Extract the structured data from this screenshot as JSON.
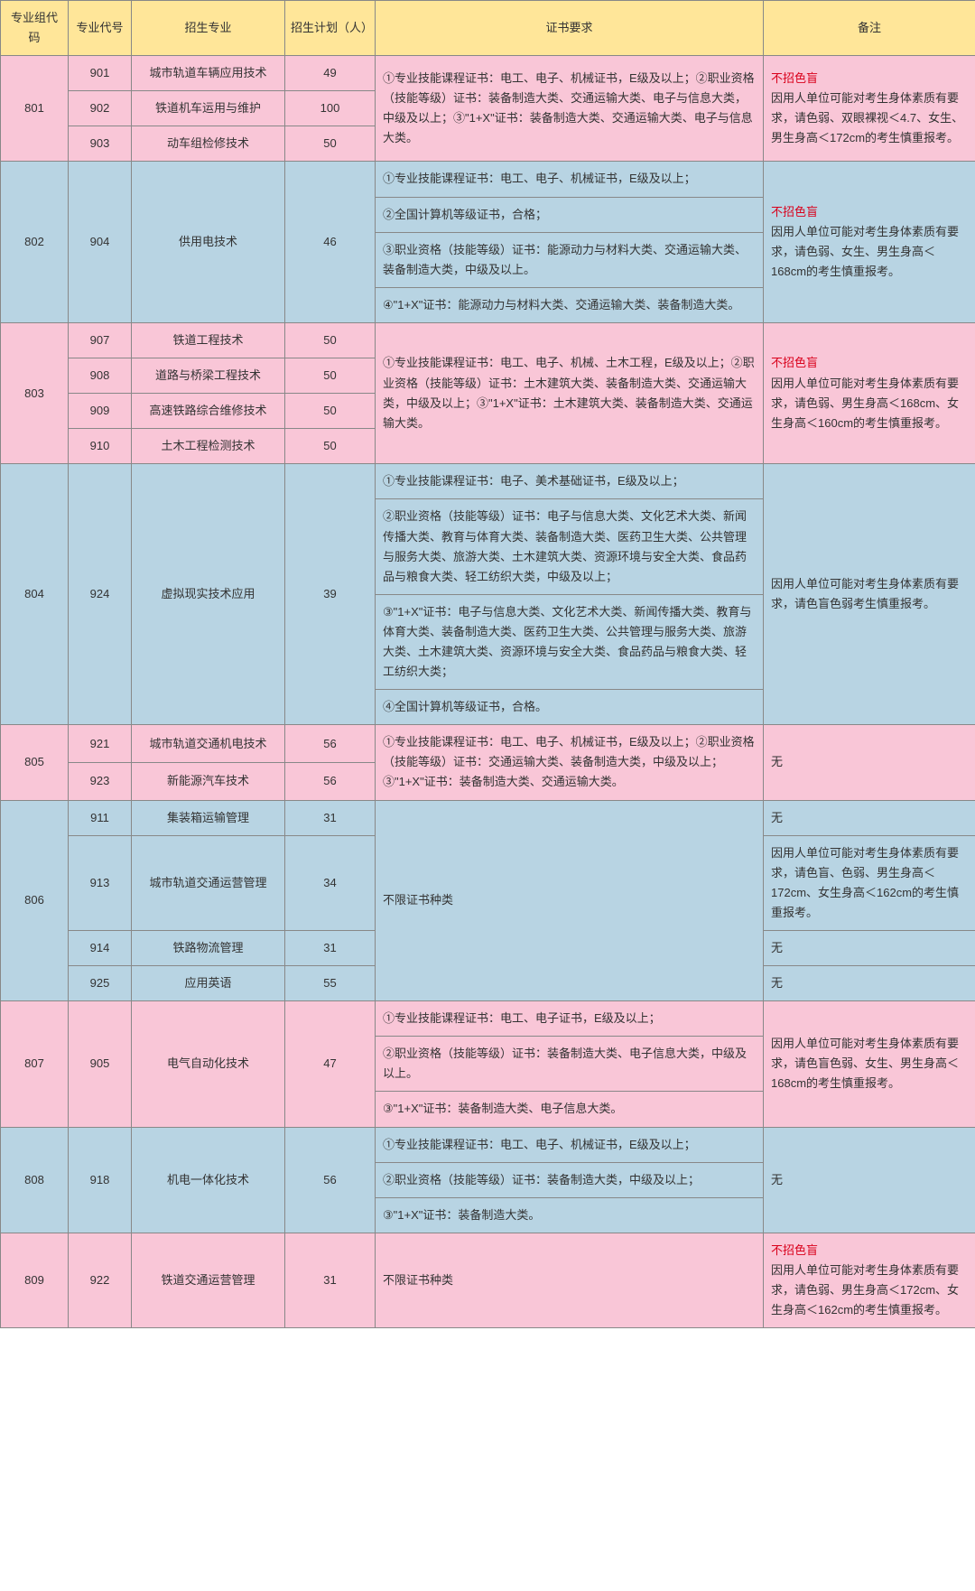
{
  "colors": {
    "header_bg": "#ffe699",
    "pink_bg": "#f9c6d7",
    "blue_bg": "#b8d4e3",
    "border": "#888888",
    "warn_text": "#d9001b"
  },
  "headers": {
    "group_code": "专业组代码",
    "major_code": "专业代号",
    "major": "招生专业",
    "plan": "招生计划（人）",
    "cert": "证书要求",
    "note": "备注"
  },
  "groups": [
    {
      "code": "801",
      "bg": "pink",
      "majors": [
        {
          "code": "901",
          "name": "城市轨道车辆应用技术",
          "plan": "49"
        },
        {
          "code": "902",
          "name": "铁道机车运用与维护",
          "plan": "100"
        },
        {
          "code": "903",
          "name": "动车组检修技术",
          "plan": "50"
        }
      ],
      "cert_blocks": [
        "①专业技能课程证书：电工、电子、机械证书，E级及以上；②职业资格（技能等级）证书：装备制造大类、交通运输大类、电子与信息大类，中级及以上；③\"1+X\"证书：装备制造大类、交通运输大类、电子与信息大类。"
      ],
      "note_warn": "不招色盲",
      "note_text": "因用人单位可能对考生身体素质有要求，请色弱、双眼裸视＜4.7、女生、男生身高＜172cm的考生慎重报考。"
    },
    {
      "code": "802",
      "bg": "blue",
      "majors": [
        {
          "code": "904",
          "name": "供用电技术",
          "plan": "46"
        }
      ],
      "cert_blocks": [
        "①专业技能课程证书：电工、电子、机械证书，E级及以上；",
        "②全国计算机等级证书，合格；",
        "③职业资格（技能等级）证书：能源动力与材料大类、交通运输大类、装备制造大类，中级及以上。",
        "④\"1+X\"证书：能源动力与材料大类、交通运输大类、装备制造大类。"
      ],
      "note_warn": "不招色盲",
      "note_text": "因用人单位可能对考生身体素质有要求，请色弱、女生、男生身高＜168cm的考生慎重报考。"
    },
    {
      "code": "803",
      "bg": "pink",
      "majors": [
        {
          "code": "907",
          "name": "铁道工程技术",
          "plan": "50"
        },
        {
          "code": "908",
          "name": "道路与桥梁工程技术",
          "plan": "50"
        },
        {
          "code": "909",
          "name": "高速铁路综合维修技术",
          "plan": "50"
        },
        {
          "code": "910",
          "name": "土木工程检测技术",
          "plan": "50"
        }
      ],
      "cert_blocks": [
        "①专业技能课程证书：电工、电子、机械、土木工程，E级及以上；②职业资格（技能等级）证书：土木建筑大类、装备制造大类、交通运输大类，中级及以上；③\"1+X\"证书：土木建筑大类、装备制造大类、交通运输大类。"
      ],
      "note_warn": "不招色盲",
      "note_text": "因用人单位可能对考生身体素质有要求，请色弱、男生身高＜168cm、女生身高＜160cm的考生慎重报考。"
    },
    {
      "code": "804",
      "bg": "blue",
      "majors": [
        {
          "code": "924",
          "name": "虚拟现实技术应用",
          "plan": "39"
        }
      ],
      "cert_blocks": [
        "①专业技能课程证书：电子、美术基础证书，E级及以上；",
        "②职业资格（技能等级）证书：电子与信息大类、文化艺术大类、新闻传播大类、教育与体育大类、装备制造大类、医药卫生大类、公共管理与服务大类、旅游大类、土木建筑大类、资源环境与安全大类、食品药品与粮食大类、轻工纺织大类，中级及以上；",
        "③\"1+X\"证书：电子与信息大类、文化艺术大类、新闻传播大类、教育与体育大类、装备制造大类、医药卫生大类、公共管理与服务大类、旅游大类、土木建筑大类、资源环境与安全大类、食品药品与粮食大类、轻工纺织大类；",
        "④全国计算机等级证书，合格。"
      ],
      "note_warn": "",
      "note_text": "因用人单位可能对考生身体素质有要求，请色盲色弱考生慎重报考。"
    },
    {
      "code": "805",
      "bg": "pink",
      "majors": [
        {
          "code": "921",
          "name": "城市轨道交通机电技术",
          "plan": "56"
        },
        {
          "code": "923",
          "name": "新能源汽车技术",
          "plan": "56"
        }
      ],
      "cert_blocks": [
        "①专业技能课程证书：电工、电子、机械证书，E级及以上；②职业资格（技能等级）证书：交通运输大类、装备制造大类，中级及以上；③\"1+X\"证书：装备制造大类、交通运输大类。"
      ],
      "note_warn": "",
      "note_text": "无"
    },
    {
      "code": "806",
      "bg": "blue",
      "majors": [
        {
          "code": "911",
          "name": "集装箱运输管理",
          "plan": "31",
          "own_note": "无"
        },
        {
          "code": "913",
          "name": "城市轨道交通运营管理",
          "plan": "34",
          "own_note": "因用人单位可能对考生身体素质有要求，请色盲、色弱、男生身高＜172cm、女生身高＜162cm的考生慎重报考。"
        },
        {
          "code": "914",
          "name": "铁路物流管理",
          "plan": "31",
          "own_note": "无"
        },
        {
          "code": "925",
          "name": "应用英语",
          "plan": "55",
          "own_note": "无"
        }
      ],
      "cert_blocks": [
        "不限证书种类"
      ],
      "per_major_note": true
    },
    {
      "code": "807",
      "bg": "pink",
      "majors": [
        {
          "code": "905",
          "name": "电气自动化技术",
          "plan": "47"
        }
      ],
      "cert_blocks": [
        "①专业技能课程证书：电工、电子证书，E级及以上；",
        "②职业资格（技能等级）证书：装备制造大类、电子信息大类，中级及以上。",
        "③\"1+X\"证书：装备制造大类、电子信息大类。"
      ],
      "note_warn": "",
      "note_text": "因用人单位可能对考生身体素质有要求，请色盲色弱、女生、男生身高＜168cm的考生慎重报考。"
    },
    {
      "code": "808",
      "bg": "blue",
      "majors": [
        {
          "code": "918",
          "name": "机电一体化技术",
          "plan": "56"
        }
      ],
      "cert_blocks": [
        "①专业技能课程证书：电工、电子、机械证书，E级及以上；",
        "②职业资格（技能等级）证书：装备制造大类，中级及以上；",
        "③\"1+X\"证书：装备制造大类。"
      ],
      "note_warn": "",
      "note_text": "无"
    },
    {
      "code": "809",
      "bg": "pink",
      "majors": [
        {
          "code": "922",
          "name": "铁道交通运营管理",
          "plan": "31"
        }
      ],
      "cert_blocks": [
        "不限证书种类"
      ],
      "note_warn": "不招色盲",
      "note_text": "因用人单位可能对考生身体素质有要求，请色弱、男生身高＜172cm、女生身高＜162cm的考生慎重报考。"
    }
  ]
}
